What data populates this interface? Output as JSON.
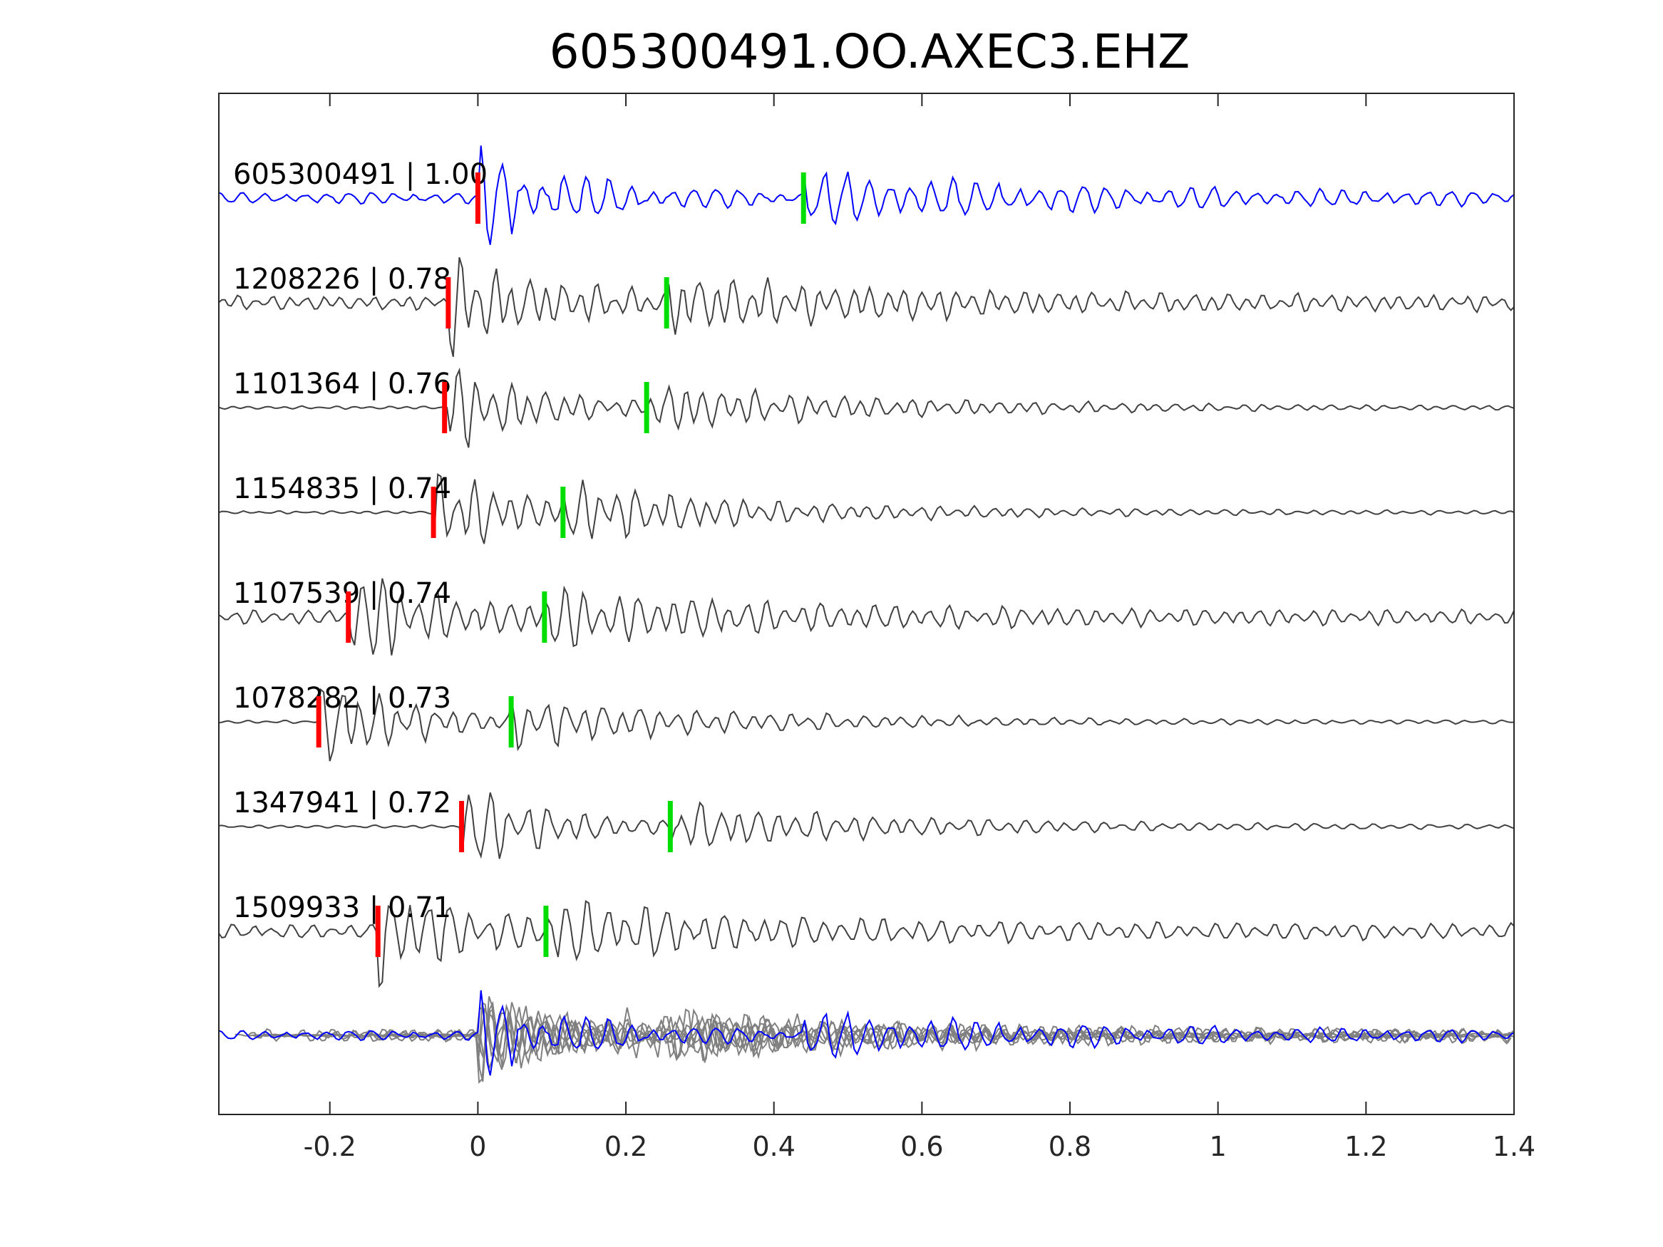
{
  "chart_data": {
    "type": "line",
    "title": "605300491.OO.AXEC3.EHZ",
    "xlabel": "",
    "ylabel": "",
    "xlim": [
      -0.35,
      1.4
    ],
    "x_ticks": [
      -0.2,
      0,
      0.2,
      0.4,
      0.6,
      0.8,
      1,
      1.2,
      1.4
    ],
    "x_tick_labels": [
      "-0.2",
      "0",
      "0.2",
      "0.4",
      "0.6",
      "0.8",
      "1",
      "1.2",
      "1.4"
    ],
    "grid": false,
    "legend": false,
    "colors": {
      "master_trace": "#0000ff",
      "match_trace": "#404040",
      "stack_trace": "#808080",
      "p_pick": "#ff0000",
      "s_pick": "#00dd00",
      "axes": "#262626"
    },
    "traces": [
      {
        "label": "605300491 | 1.00",
        "id": "605300491",
        "cc": 1.0,
        "p_pick": 0.0,
        "s_pick": 0.44,
        "kind": "master"
      },
      {
        "label": "1208226 | 0.78",
        "id": "1208226",
        "cc": 0.78,
        "p_pick": -0.04,
        "s_pick": 0.255,
        "kind": "match"
      },
      {
        "label": "1101364 | 0.76",
        "id": "1101364",
        "cc": 0.76,
        "p_pick": -0.045,
        "s_pick": 0.228,
        "kind": "match"
      },
      {
        "label": "1154835 | 0.74",
        "id": "1154835",
        "cc": 0.74,
        "p_pick": -0.06,
        "s_pick": 0.115,
        "kind": "match"
      },
      {
        "label": "1107539 | 0.74",
        "id": "1107539",
        "cc": 0.74,
        "p_pick": -0.175,
        "s_pick": 0.09,
        "kind": "match"
      },
      {
        "label": "1078282 | 0.73",
        "id": "1078282",
        "cc": 0.73,
        "p_pick": -0.215,
        "s_pick": 0.045,
        "kind": "match"
      },
      {
        "label": "1347941 | 0.72",
        "id": "1347941",
        "cc": 0.72,
        "p_pick": -0.022,
        "s_pick": 0.26,
        "kind": "match"
      },
      {
        "label": "1509933 | 0.71",
        "id": "1509933",
        "cc": 0.71,
        "p_pick": -0.135,
        "s_pick": 0.092,
        "kind": "match"
      }
    ]
  }
}
